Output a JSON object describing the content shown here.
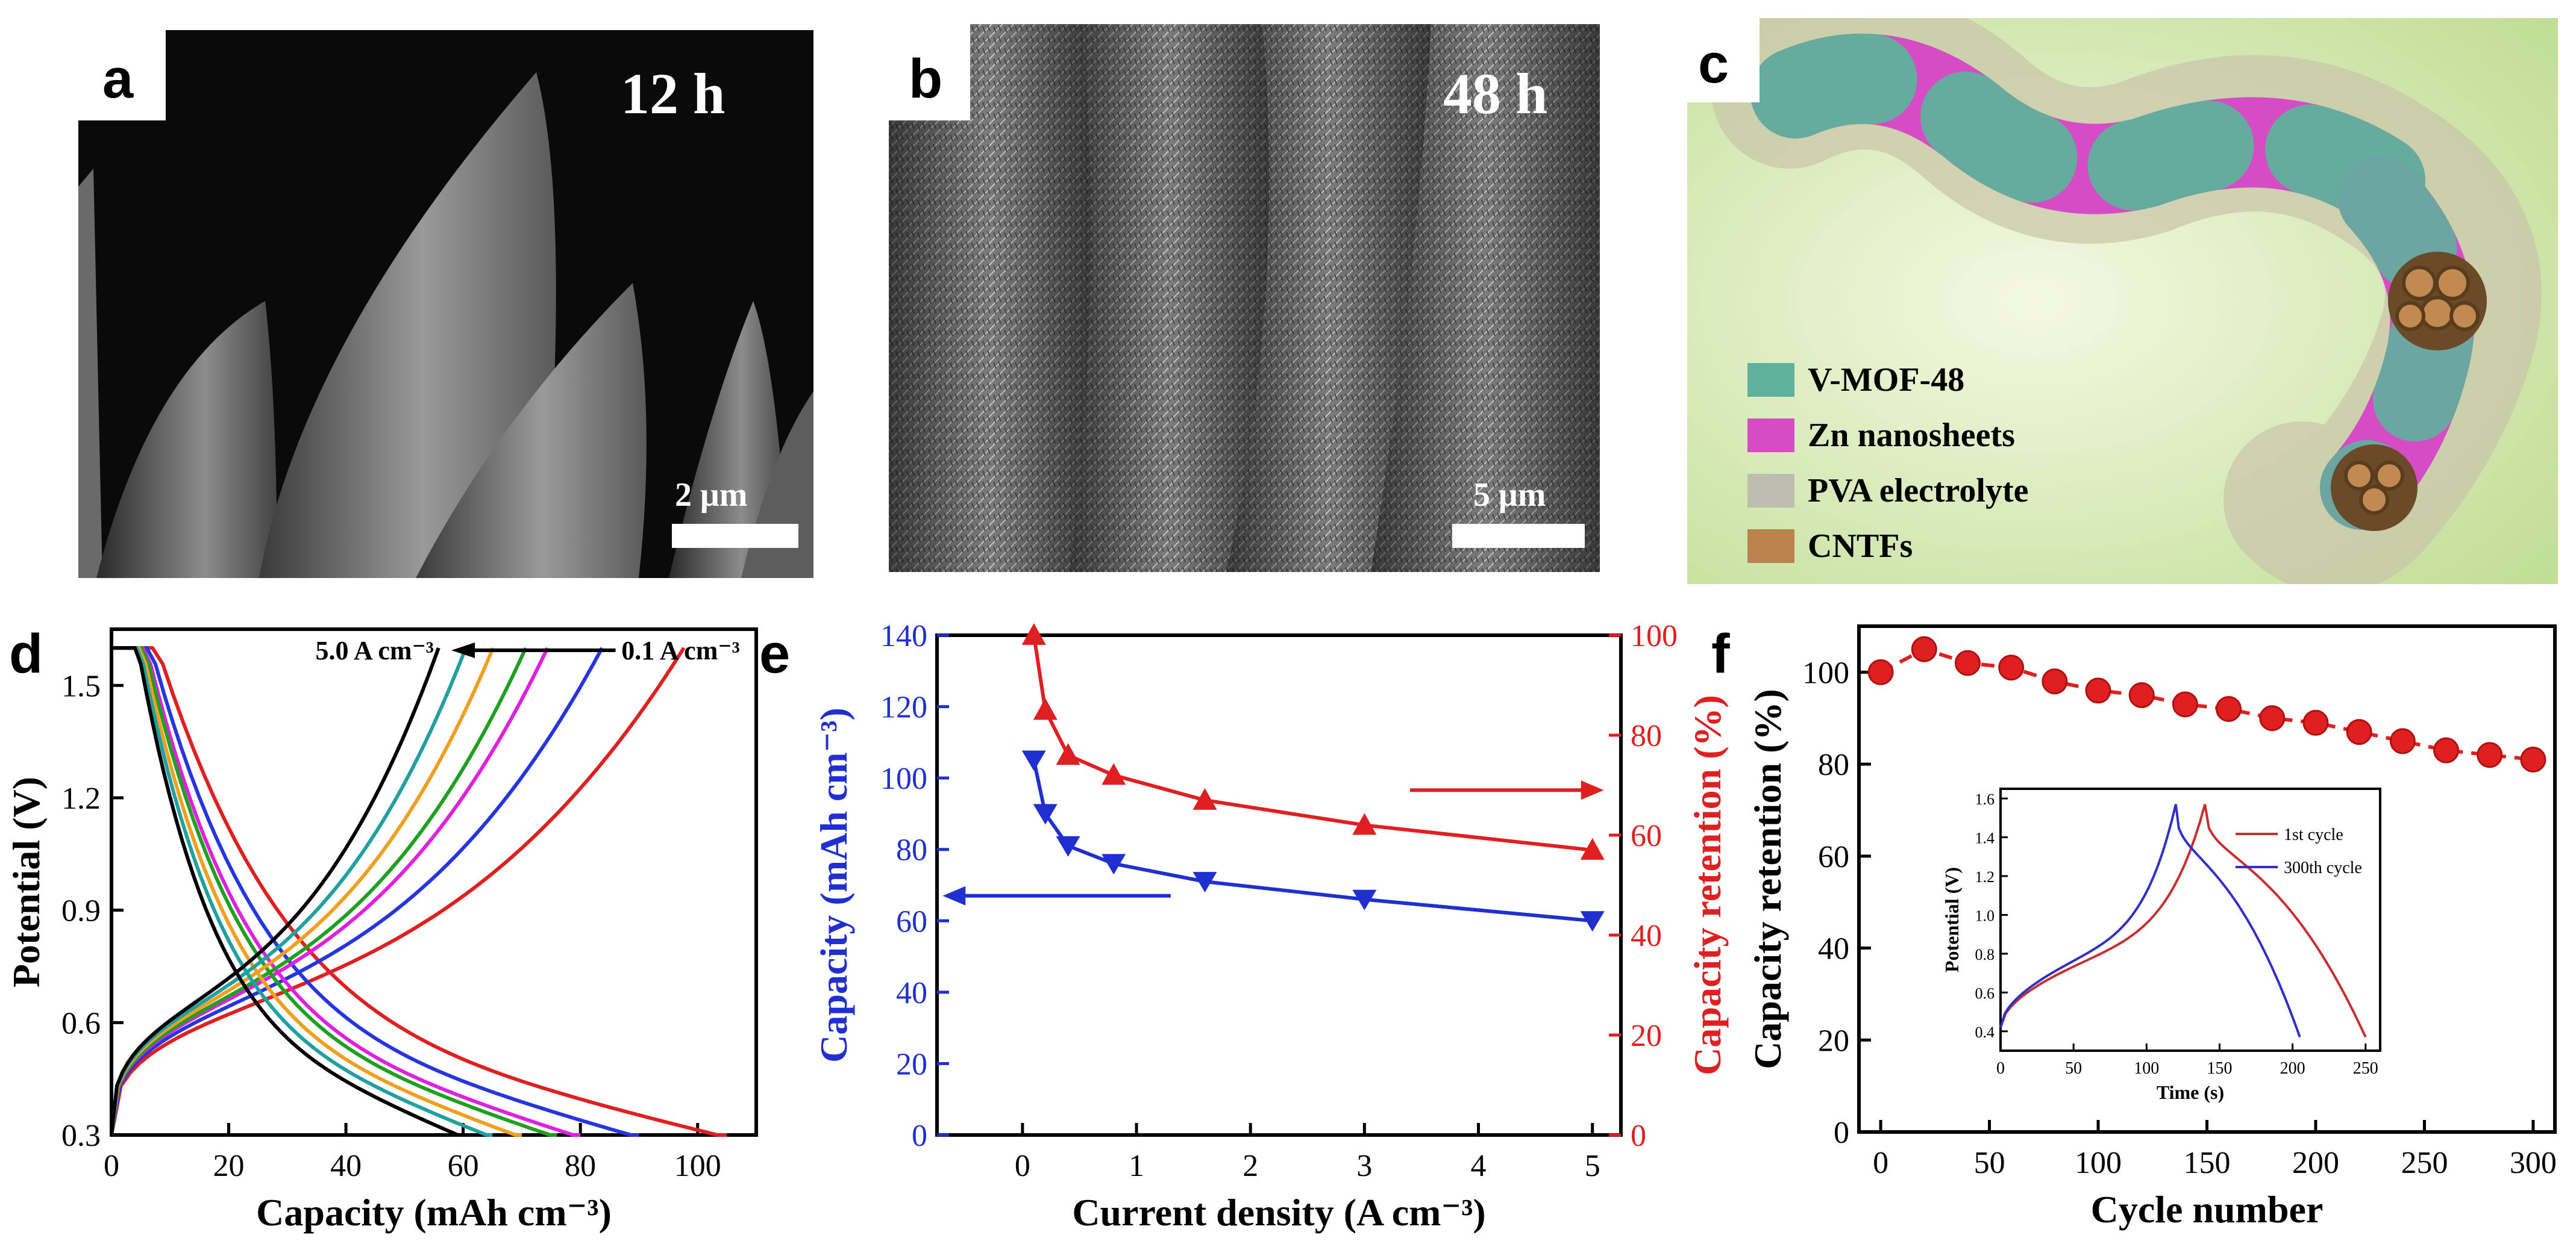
{
  "panels": {
    "a": {
      "letter": "a",
      "time": "12 h",
      "scalebar": "2 μm"
    },
    "b": {
      "letter": "b",
      "time": "48 h",
      "scalebar": "5 μm"
    },
    "c": {
      "letter": "c",
      "legend": [
        {
          "label": "V-MOF-48",
          "color": "#5fb09c"
        },
        {
          "label": "Zn nanosheets",
          "color": "#d64cc6"
        },
        {
          "label": "PVA electrolyte",
          "color": "#bdbdb0"
        },
        {
          "label": "CNTFs",
          "color": "#b9824e"
        }
      ]
    },
    "d": {
      "letter": "d"
    },
    "e": {
      "letter": "e"
    },
    "f": {
      "letter": "f"
    }
  },
  "chart_data": [
    {
      "id": "d",
      "type": "line",
      "xlabel": "Capacity (mAh cm⁻³)",
      "ylabel": "Potential (V)",
      "xlim": [
        0,
        110
      ],
      "ylim": [
        0.3,
        1.65
      ],
      "xticks": [
        "0",
        "20",
        "40",
        "60",
        "80",
        "100"
      ],
      "yticks": [
        "0.3",
        "0.6",
        "0.9",
        "1.2",
        "1.5"
      ],
      "annotation": {
        "left": "5.0 A cm⁻³",
        "right": "0.1 A cm⁻³"
      },
      "series": [
        {
          "color": "#e02020",
          "capacity": 105
        },
        {
          "color": "#2535e0",
          "capacity": 90
        },
        {
          "color": "#e020e0",
          "capacity": 80
        },
        {
          "color": "#20a020",
          "capacity": 76
        },
        {
          "color": "#f0a020",
          "capacity": 70
        },
        {
          "color": "#20a0a0",
          "capacity": 65
        },
        {
          "color": "#000000",
          "capacity": 60
        }
      ]
    },
    {
      "id": "e",
      "type": "line",
      "xlabel": "Current density (A cm⁻³)",
      "ylabel_left": "Capacity (mAh cm⁻³)",
      "ylabel_right": "Capacity retention (%)",
      "xlim": [
        -0.75,
        5.25
      ],
      "ylim_left": [
        0,
        140
      ],
      "ylim_right": [
        0,
        100
      ],
      "xticks": [
        "0",
        "1",
        "2",
        "3",
        "4",
        "5"
      ],
      "yticks_left": [
        "0",
        "20",
        "40",
        "60",
        "80",
        "100",
        "120",
        "140"
      ],
      "yticks_right": [
        "0",
        "20",
        "40",
        "60",
        "80",
        "100"
      ],
      "series": [
        {
          "name": "",
          "axis": "left",
          "color": "#2030d0",
          "x": [
            0.1,
            0.2,
            0.4,
            0.8,
            1.6,
            3,
            5
          ],
          "y": [
            105,
            90,
            81,
            76,
            71,
            66,
            60
          ]
        },
        {
          "name": "",
          "axis": "right",
          "color": "#e02020",
          "x": [
            0.1,
            0.2,
            0.4,
            0.8,
            1.6,
            3,
            5
          ],
          "y": [
            100,
            85,
            76,
            72,
            67,
            62,
            57
          ]
        }
      ]
    },
    {
      "id": "f",
      "type": "scatter",
      "xlabel": "Cycle number",
      "ylabel": "Capacity retention (%)",
      "xlim": [
        -10,
        310
      ],
      "ylim": [
        0,
        110
      ],
      "xticks": [
        "0",
        "50",
        "100",
        "150",
        "200",
        "250",
        "300"
      ],
      "yticks": [
        "0",
        "20",
        "40",
        "60",
        "80",
        "100"
      ],
      "series": [
        {
          "name": "",
          "color": "#e02020",
          "x": [
            0,
            20,
            40,
            60,
            80,
            100,
            120,
            140,
            160,
            180,
            200,
            220,
            240,
            260,
            280,
            300
          ],
          "y": [
            100,
            105,
            102,
            101,
            98,
            96,
            95,
            93,
            92,
            90,
            89,
            87,
            85,
            83,
            82,
            81
          ]
        }
      ],
      "inset": {
        "xlabel": "Time (s)",
        "ylabel": "Potential (V)",
        "xlim": [
          0,
          260
        ],
        "ylim": [
          0.3,
          1.65
        ],
        "xticks": [
          "0",
          "50",
          "100",
          "150",
          "200",
          "250"
        ],
        "yticks": [
          "0.4",
          "0.6",
          "0.8",
          "1.0",
          "1.2",
          "1.4",
          "1.6"
        ],
        "legend": [
          {
            "label": "1st cycle",
            "color": "#c83030"
          },
          {
            "label": "300th cycle",
            "color": "#3030c8"
          }
        ]
      }
    }
  ]
}
